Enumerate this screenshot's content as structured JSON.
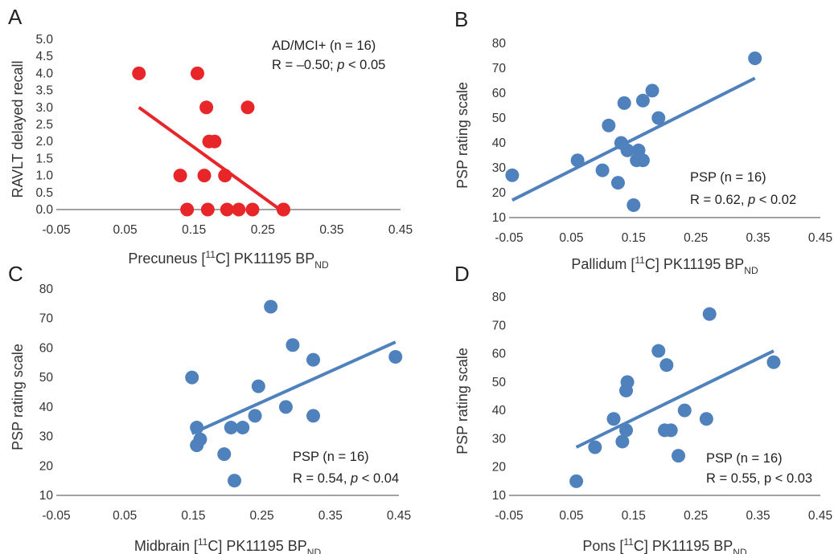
{
  "chart_data": [
    {
      "panel": "A",
      "type": "scatter",
      "xlabel": {
        "main": "Precuneus [",
        "sup": "11",
        "mid": "C] PK11195 BP",
        "sub": "ND"
      },
      "ylabel": "RAVLT delayed recall",
      "xlim": [
        -0.05,
        0.45
      ],
      "ylim": [
        0.0,
        5.0
      ],
      "xticks": [
        "-0.05",
        "0.05",
        "0.15",
        "0.25",
        "0.35",
        "0.45"
      ],
      "yticks": [
        "0.0",
        "0.5",
        "1.0",
        "1.5",
        "2.0",
        "2.5",
        "3.0",
        "3.5",
        "4.0",
        "4.5",
        "5.0"
      ],
      "ytick_values": [
        0,
        0.5,
        1,
        1.5,
        2,
        2.5,
        3,
        3.5,
        4,
        4.5,
        5
      ],
      "xtick_values": [
        -0.05,
        0.05,
        0.15,
        0.25,
        0.35,
        0.45
      ],
      "annotation": [
        "AD/MCI+ (n = 16)",
        "R = –0.50; ",
        "p",
        " < 0.05"
      ],
      "color": "#e8262a",
      "points": [
        [
          0.07,
          4
        ],
        [
          0.155,
          4
        ],
        [
          0.13,
          1
        ],
        [
          0.14,
          0
        ],
        [
          0.165,
          1
        ],
        [
          0.168,
          3
        ],
        [
          0.17,
          0
        ],
        [
          0.172,
          2
        ],
        [
          0.18,
          2
        ],
        [
          0.195,
          1
        ],
        [
          0.198,
          0
        ],
        [
          0.215,
          0
        ],
        [
          0.228,
          3
        ],
        [
          0.235,
          0
        ],
        [
          0.28,
          0
        ],
        [
          0.28,
          0
        ]
      ],
      "trend": [
        [
          0.07,
          3.0
        ],
        [
          0.275,
          0.0
        ]
      ]
    },
    {
      "panel": "B",
      "type": "scatter",
      "xlabel": {
        "main": "Pallidum [",
        "sup": "11",
        "mid": "C] PK11195 BP",
        "sub": "ND"
      },
      "ylabel": "PSP rating scale",
      "xlim": [
        -0.05,
        0.45
      ],
      "ylim": [
        10,
        80
      ],
      "xticks": [
        "-0.05",
        "0.05",
        "0.15",
        "0.25",
        "0.35",
        "0.45"
      ],
      "yticks": [
        "10",
        "20",
        "30",
        "40",
        "50",
        "60",
        "70",
        "80"
      ],
      "ytick_values": [
        10,
        20,
        30,
        40,
        50,
        60,
        70,
        80
      ],
      "xtick_values": [
        -0.05,
        0.05,
        0.15,
        0.25,
        0.35,
        0.45
      ],
      "annotation": [
        "PSP (n = 16)",
        "R = 0.62, ",
        "p",
        " < 0.02"
      ],
      "color": "#4f81bd",
      "points": [
        [
          -0.045,
          27
        ],
        [
          0.06,
          33
        ],
        [
          0.1,
          29
        ],
        [
          0.11,
          47
        ],
        [
          0.125,
          24
        ],
        [
          0.13,
          40
        ],
        [
          0.135,
          56
        ],
        [
          0.14,
          37
        ],
        [
          0.15,
          15
        ],
        [
          0.155,
          33
        ],
        [
          0.158,
          37
        ],
        [
          0.165,
          33
        ],
        [
          0.165,
          57
        ],
        [
          0.18,
          61
        ],
        [
          0.19,
          50
        ],
        [
          0.345,
          74
        ]
      ],
      "trend": [
        [
          -0.045,
          17
        ],
        [
          0.345,
          66
        ]
      ]
    },
    {
      "panel": "C",
      "type": "scatter",
      "xlabel": {
        "main": "Midbrain [",
        "sup": "11",
        "mid": "C] PK11195 BP",
        "sub": "ND"
      },
      "ylabel": "PSP rating scale",
      "xlim": [
        -0.05,
        0.45
      ],
      "ylim": [
        10,
        80
      ],
      "xticks": [
        "-0.05",
        "0.05",
        "0.15",
        "0.25",
        "0.35",
        "0.45"
      ],
      "yticks": [
        "10",
        "20",
        "30",
        "40",
        "50",
        "60",
        "70",
        "80"
      ],
      "ytick_values": [
        10,
        20,
        30,
        40,
        50,
        60,
        70,
        80
      ],
      "xtick_values": [
        -0.05,
        0.05,
        0.15,
        0.25,
        0.35,
        0.45
      ],
      "annotation": [
        "PSP (n = 16)",
        "R = 0.54, ",
        "p",
        " < 0.04"
      ],
      "color": "#4f81bd",
      "points": [
        [
          0.148,
          50
        ],
        [
          0.155,
          33
        ],
        [
          0.155,
          27
        ],
        [
          0.16,
          29
        ],
        [
          0.195,
          24
        ],
        [
          0.205,
          33
        ],
        [
          0.21,
          15
        ],
        [
          0.222,
          33
        ],
        [
          0.24,
          37
        ],
        [
          0.245,
          47
        ],
        [
          0.263,
          74
        ],
        [
          0.285,
          40
        ],
        [
          0.295,
          61
        ],
        [
          0.325,
          56
        ],
        [
          0.325,
          37
        ],
        [
          0.445,
          57
        ]
      ],
      "trend": [
        [
          0.148,
          31
        ],
        [
          0.445,
          62
        ]
      ]
    },
    {
      "panel": "D",
      "type": "scatter",
      "xlabel": {
        "main": "Pons [",
        "sup": "11",
        "mid": "C] PK11195 BP",
        "sub": "ND"
      },
      "ylabel": "PSP rating scale",
      "xlim": [
        -0.05,
        0.45
      ],
      "ylim": [
        10,
        80
      ],
      "xticks": [
        "-0.05",
        "0.05",
        "0.15",
        "0.25",
        "0.35",
        "0.45"
      ],
      "yticks": [
        "10",
        "20",
        "30",
        "40",
        "50",
        "60",
        "70",
        "80"
      ],
      "ytick_values": [
        10,
        20,
        30,
        40,
        50,
        60,
        70,
        80
      ],
      "xtick_values": [
        -0.05,
        0.05,
        0.15,
        0.25,
        0.35,
        0.45
      ],
      "annotation": [
        "PSP (n = 16)",
        "R = 0.55, p < 0.03"
      ],
      "color": "#4f81bd",
      "points": [
        [
          0.058,
          15
        ],
        [
          0.088,
          27
        ],
        [
          0.118,
          37
        ],
        [
          0.132,
          29
        ],
        [
          0.138,
          33
        ],
        [
          0.138,
          47
        ],
        [
          0.14,
          50
        ],
        [
          0.19,
          61
        ],
        [
          0.2,
          33
        ],
        [
          0.203,
          56
        ],
        [
          0.21,
          33
        ],
        [
          0.222,
          24
        ],
        [
          0.232,
          40
        ],
        [
          0.267,
          37
        ],
        [
          0.272,
          74
        ],
        [
          0.375,
          57
        ]
      ],
      "trend": [
        [
          0.058,
          27
        ],
        [
          0.375,
          61
        ]
      ]
    }
  ]
}
